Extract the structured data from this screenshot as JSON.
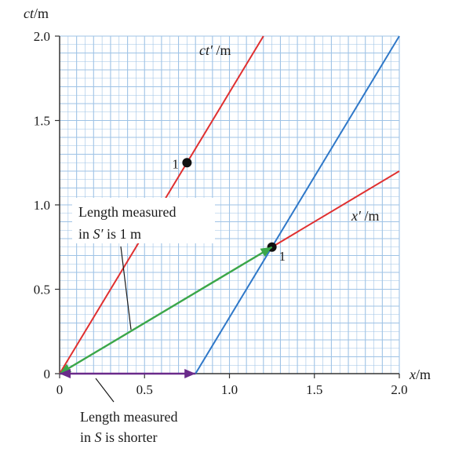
{
  "chart_data": {
    "type": "line",
    "x_axis": {
      "label_var": "x",
      "label_unit": "/m",
      "range": [
        0,
        2.0
      ],
      "ticks": [
        "0",
        "0.5",
        "1.0",
        "1.5",
        "2.0"
      ]
    },
    "y_axis": {
      "label_var": "ct",
      "label_unit": "/m",
      "range": [
        0,
        2.0
      ],
      "ticks": [
        "0",
        "0.5",
        "1.0",
        "1.5",
        "2.0"
      ]
    },
    "grid": true,
    "grid_color": "#9fc3e6",
    "series": [
      {
        "name": "ct′/m",
        "color": "#e03030",
        "points": [
          [
            0,
            0
          ],
          [
            1.2,
            2.0
          ]
        ]
      },
      {
        "name": "x′/m",
        "color": "#e03030",
        "points": [
          [
            0,
            0
          ],
          [
            2.0,
            1.2
          ]
        ]
      },
      {
        "name": "",
        "color": "#2f78c8",
        "points": [
          [
            0.8,
            0
          ],
          [
            2.0,
            2.0
          ]
        ]
      }
    ],
    "line_labels": [
      {
        "var": "ct′",
        "unit": " /m"
      },
      {
        "var": "x′",
        "unit": " /m"
      }
    ],
    "points": [
      {
        "x": 0.75,
        "y": 1.25,
        "label": "1"
      },
      {
        "x": 1.25,
        "y": 0.75,
        "label": "1"
      }
    ],
    "arrows": [
      {
        "color": "#3aa84a",
        "from": [
          1.25,
          0.75
        ],
        "to": [
          0,
          0
        ]
      },
      {
        "color": "#6a2a8a",
        "from": [
          0,
          0
        ],
        "to": [
          0.8,
          0
        ]
      }
    ],
    "annotations": [
      {
        "lines": [
          [
            "Length measured"
          ],
          [
            "in ",
            "S′",
            " is 1 m"
          ]
        ]
      },
      {
        "lines": [
          [
            "Length measured"
          ],
          [
            "in ",
            "S",
            " is shorter"
          ]
        ]
      }
    ]
  }
}
